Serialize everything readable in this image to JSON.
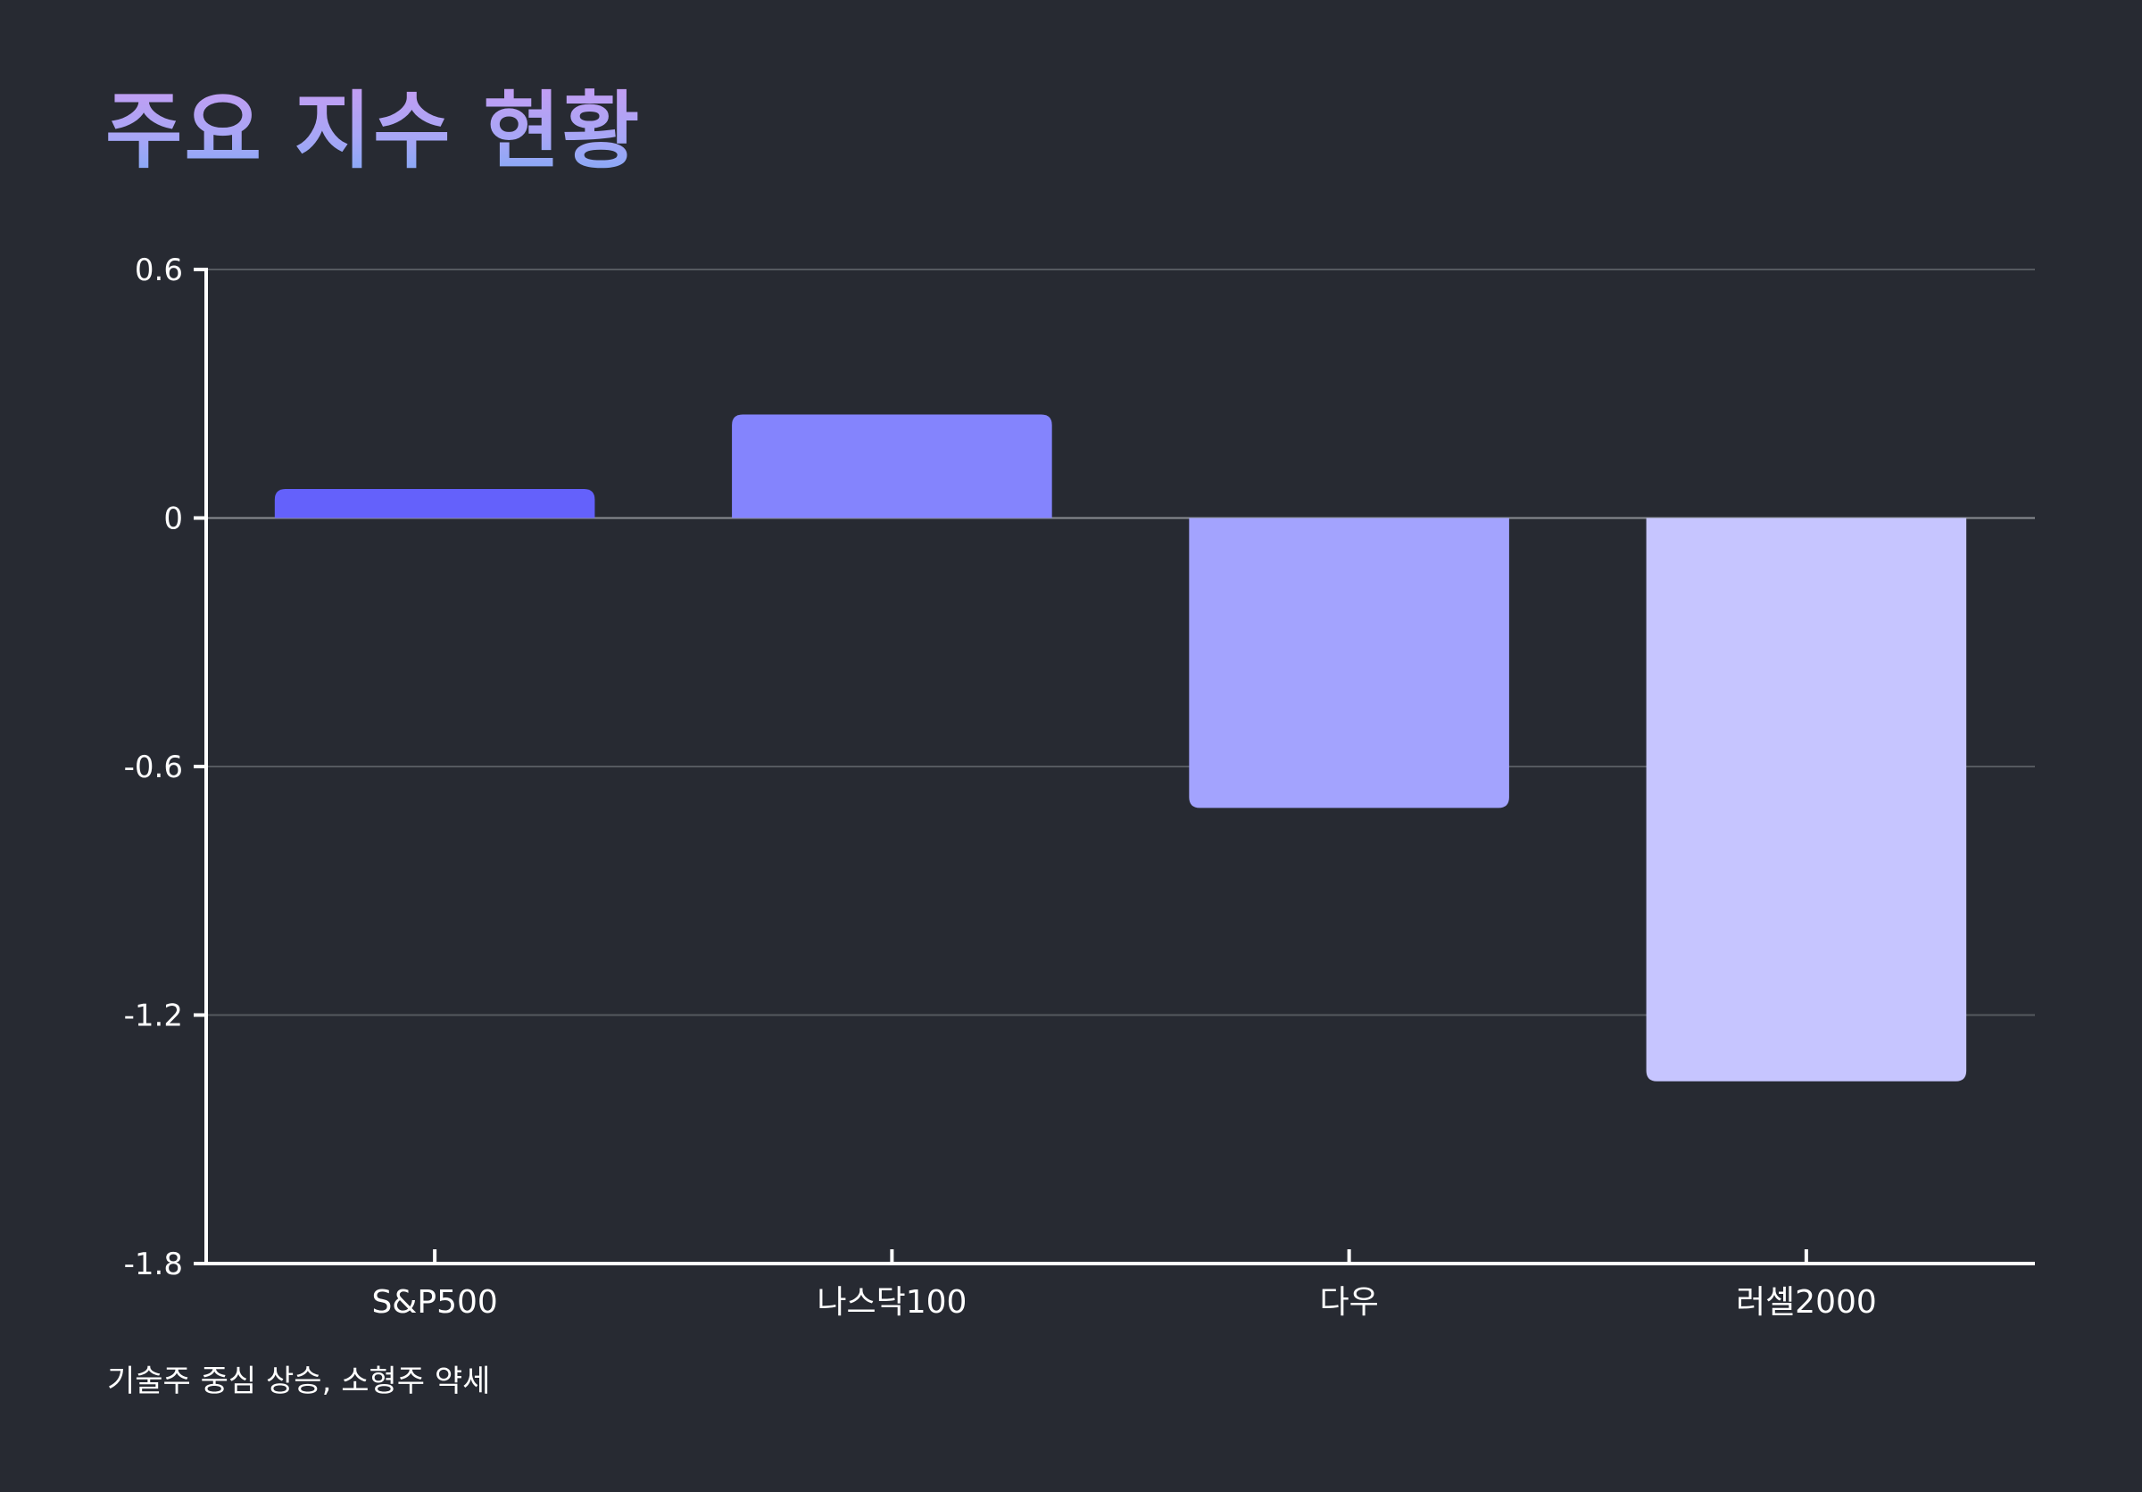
{
  "title": "주요 지수 현황",
  "caption": "기술주 중심 상승, 소형주 약세",
  "colors": {
    "background": "#272a32",
    "axis": "#ffffff",
    "grid": "#55595f",
    "zero_line": "#8a8d93",
    "tick_text": "#ffffff"
  },
  "chart_data": {
    "type": "bar",
    "categories": [
      "S&P500",
      "나스닥100",
      "다우",
      "러셀2000"
    ],
    "values": [
      0.07,
      0.25,
      -0.7,
      -1.36
    ],
    "bar_colors": [
      "#6461fb",
      "#8484fd",
      "#a3a3fe",
      "#c6c5ff"
    ],
    "ylim": [
      -1.8,
      0.6
    ],
    "yticks": [
      0.6,
      0,
      -0.6,
      -1.2,
      -1.8
    ],
    "ytick_labels": [
      "0.6",
      "0",
      "-0.6",
      "-1.2",
      "-1.8"
    ],
    "grid": "horizontal",
    "legend": "none",
    "xlabel": "",
    "ylabel": ""
  }
}
